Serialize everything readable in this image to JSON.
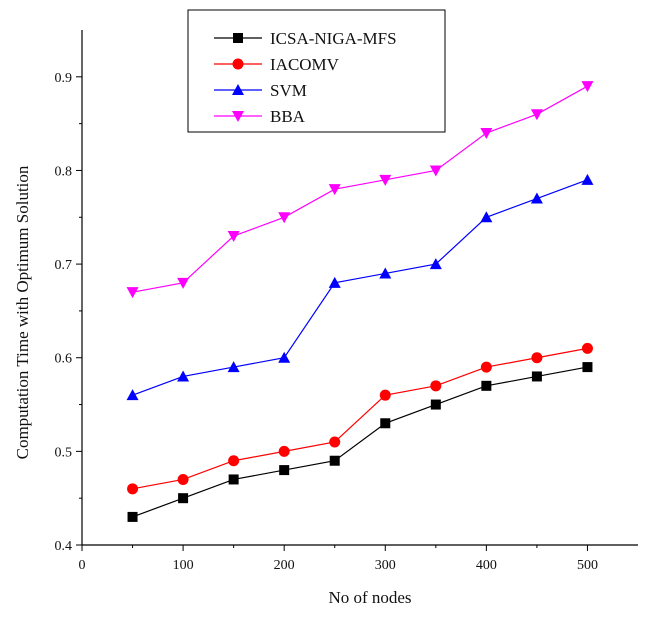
{
  "chart_data": {
    "type": "line",
    "title": "",
    "xlabel": "No of nodes",
    "ylabel": "Computation Time with Optimum Solution",
    "x": [
      50,
      100,
      150,
      200,
      250,
      300,
      350,
      400,
      450,
      500
    ],
    "xlim": [
      0,
      550
    ],
    "ylim": [
      0.4,
      0.95
    ],
    "xticks": [
      0,
      100,
      200,
      300,
      400,
      500
    ],
    "yticks": [
      0.4,
      0.5,
      0.6,
      0.7,
      0.8,
      0.9
    ],
    "xtick_labels": [
      "0",
      "100",
      "200",
      "300",
      "400",
      "500"
    ],
    "ytick_labels": [
      "0.4",
      "0.5",
      "0.6",
      "0.7",
      "0.8",
      "0.9"
    ],
    "grid": false,
    "legend_position": "top-center",
    "series": [
      {
        "name": "ICSA-NIGA-MFS",
        "color": "#000000",
        "marker": "square",
        "values": [
          0.43,
          0.45,
          0.47,
          0.48,
          0.49,
          0.53,
          0.55,
          0.57,
          0.58,
          0.59
        ]
      },
      {
        "name": "IACOMV",
        "color": "#ff0000",
        "marker": "circle",
        "values": [
          0.46,
          0.47,
          0.49,
          0.5,
          0.51,
          0.56,
          0.57,
          0.59,
          0.6,
          0.61
        ]
      },
      {
        "name": "SVM",
        "color": "#0000ff",
        "marker": "triangle-up",
        "values": [
          0.56,
          0.58,
          0.59,
          0.6,
          0.68,
          0.69,
          0.7,
          0.75,
          0.77,
          0.79
        ]
      },
      {
        "name": "BBA",
        "color": "#ff00ff",
        "marker": "triangle-down",
        "values": [
          0.67,
          0.68,
          0.73,
          0.75,
          0.78,
          0.79,
          0.8,
          0.84,
          0.86,
          0.89
        ]
      }
    ]
  }
}
